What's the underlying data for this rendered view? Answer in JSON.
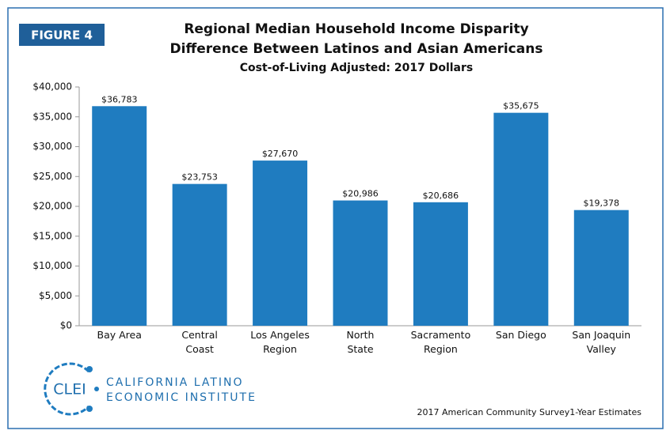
{
  "figure_label": "FIGURE 4",
  "chart_data": {
    "type": "bar",
    "title": "Regional Median Household Income Disparity",
    "subtitle": "Difference Between Latinos and Asian Americans",
    "subtitle_2": "Cost-of-Living Adjusted: 2017 Dollars",
    "categories": [
      "Bay Area",
      "Central\nCoast",
      "Los Angeles\nRegion",
      "North\nState",
      "Sacramento\nRegion",
      "San Diego",
      "San Joaquin\nValley"
    ],
    "values": [
      36783,
      23753,
      27670,
      20986,
      20686,
      35675,
      19378
    ],
    "value_labels": [
      "$36,783",
      "$23,753",
      "$27,670",
      "$20,986",
      "$20,686",
      "$35,675",
      "$19,378"
    ],
    "color": "#1f7cc0",
    "ylim": [
      0,
      40000
    ],
    "yticks": [
      {
        "value": 0,
        "label": "$0"
      },
      {
        "value": 5000,
        "label": "$5,000"
      },
      {
        "value": 10000,
        "label": "$10,000"
      },
      {
        "value": 15000,
        "label": "$15,000"
      },
      {
        "value": 20000,
        "label": "$20,000"
      },
      {
        "value": 25000,
        "label": "$25,000"
      },
      {
        "value": 30000,
        "label": "$30,000"
      },
      {
        "value": 35000,
        "label": "$35,000"
      },
      {
        "value": 40000,
        "label": "$40,000"
      }
    ],
    "grid": false
  },
  "logo": {
    "acronym": "CLEI",
    "name_lines": [
      "CALIFORNIA LATINO",
      "ECONOMIC INSTITUTE"
    ]
  },
  "source": "2017 American Community Survey1-Year Estimates"
}
